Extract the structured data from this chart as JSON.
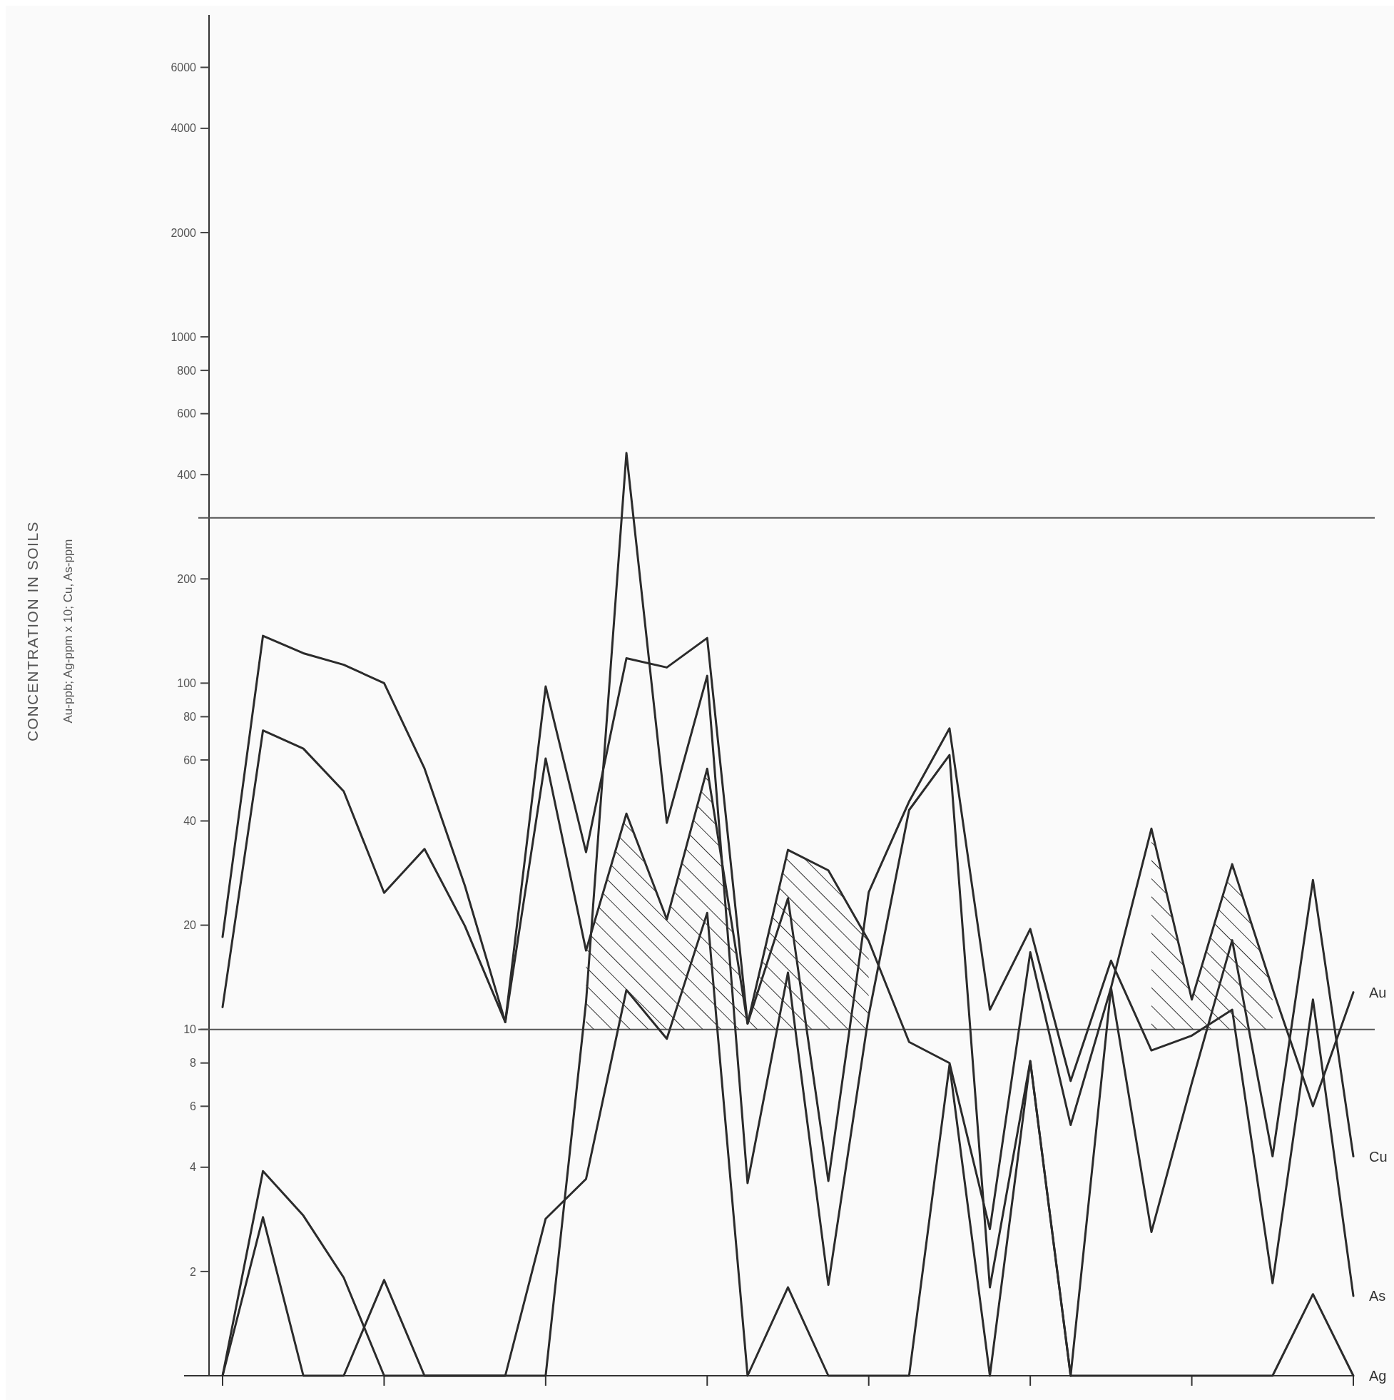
{
  "chart_data": {
    "type": "line",
    "ylabel": "CONCENTRATION IN SOILS\nAu-ppb; Ag-ppm x 10; Cu, As-ppm",
    "log": true,
    "line_style": "solid",
    "categories": [
      null,
      null,
      null,
      null,
      null,
      null,
      null,
      null,
      null,
      null,
      null,
      null,
      null,
      null,
      null,
      null,
      null,
      null,
      null,
      null,
      null,
      null,
      null,
      null,
      null,
      null,
      null,
      null,
      null
    ],
    "series": [
      {
        "name": "Au",
        "color": "#2b2b2b",
        "values": [
          11.6,
          73,
          64.7,
          48.7,
          24.8,
          33.2,
          19.9,
          10.5,
          60.6,
          16.9,
          42,
          20.8,
          56.6,
          10.4,
          33,
          28.8,
          18,
          9.2,
          8,
          2.65,
          16.7,
          5.3,
          13.2,
          38,
          12.2,
          30,
          13.1,
          6,
          12.8
        ]
      },
      {
        "name": "Cu",
        "color": "#2b2b2b",
        "values": [
          1,
          3.9,
          2.9,
          1.92,
          1,
          1,
          1,
          1,
          1,
          12,
          462,
          39.5,
          105,
          3.6,
          14.6,
          1.83,
          11,
          43,
          62,
          1.8,
          8.1,
          1,
          13.2,
          2.6,
          7,
          18.1,
          4.3,
          27,
          4.3
        ]
      },
      {
        "name": "As",
        "color": "#2b2b2b",
        "values": [
          18.5,
          137,
          122,
          113,
          100,
          56.7,
          26,
          10.5,
          97.8,
          32.5,
          118,
          111,
          135,
          10.4,
          23.9,
          3.65,
          24.9,
          45.5,
          74,
          11.4,
          19.5,
          7.1,
          15.8,
          8.7,
          9.6,
          11.4,
          1.85,
          12.2,
          1.7
        ]
      },
      {
        "name": "Ag",
        "color": "#2b2b2b",
        "values": [
          1,
          2.87,
          1,
          1,
          1.89,
          1,
          1,
          1,
          2.84,
          3.7,
          13,
          9.4,
          21.7,
          1,
          1.8,
          1,
          1,
          1,
          7.9,
          1,
          8.1,
          1,
          1,
          1,
          1,
          1,
          1,
          1.72,
          1
        ]
      },
      {
        "type": "area",
        "color": "#333333",
        "values": [
          null,
          null,
          null,
          null,
          null,
          null,
          null,
          null,
          null,
          16.9,
          42,
          20.8,
          56.6,
          10.4,
          33,
          28.8,
          18,
          null,
          null,
          null,
          null,
          null,
          null,
          38,
          12.2,
          30,
          13.1,
          null,
          null
        ]
      }
    ],
    "ylim": [
      1,
      8500
    ],
    "yticks": [
      2,
      4,
      6,
      8,
      10,
      20,
      40,
      60,
      80,
      100,
      200,
      400,
      600,
      800,
      1000,
      2000,
      4000,
      6000
    ],
    "ref_lines": [
      {
        "axis": "y",
        "value": 10,
        "color": "#555555"
      },
      {
        "axis": "y",
        "value": 300,
        "color": "#555555"
      }
    ]
  }
}
